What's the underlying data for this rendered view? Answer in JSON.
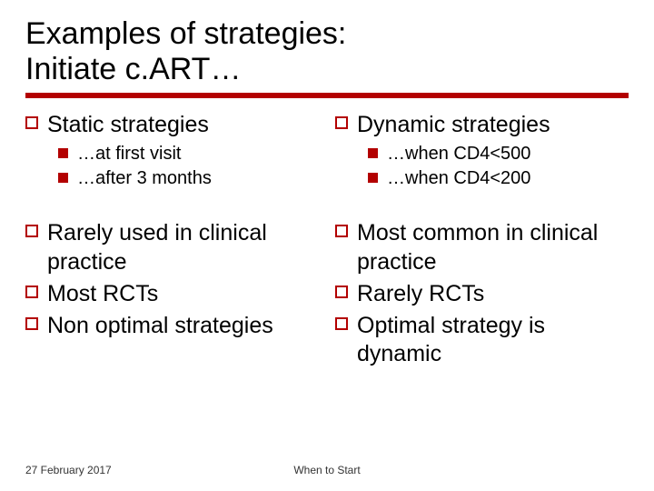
{
  "title_line1": "Examples of strategies:",
  "title_line2": "Initiate c.ART…",
  "colors": {
    "accent": "#b30000",
    "text": "#000000",
    "background": "#ffffff"
  },
  "left": {
    "h1": "Static strategies",
    "sub": [
      "…at first visit",
      "…after 3 months"
    ],
    "items": [
      "Rarely used in clinical practice",
      "Most RCTs",
      "Non optimal strategies"
    ]
  },
  "right": {
    "h1": "Dynamic strategies",
    "sub": [
      "…when CD4<500",
      "…when CD4<200"
    ],
    "items": [
      "Most common in clinical practice",
      "Rarely RCTs",
      "Optimal strategy is dynamic"
    ]
  },
  "footer": {
    "date": "27 February 2017",
    "center": "When to Start"
  }
}
